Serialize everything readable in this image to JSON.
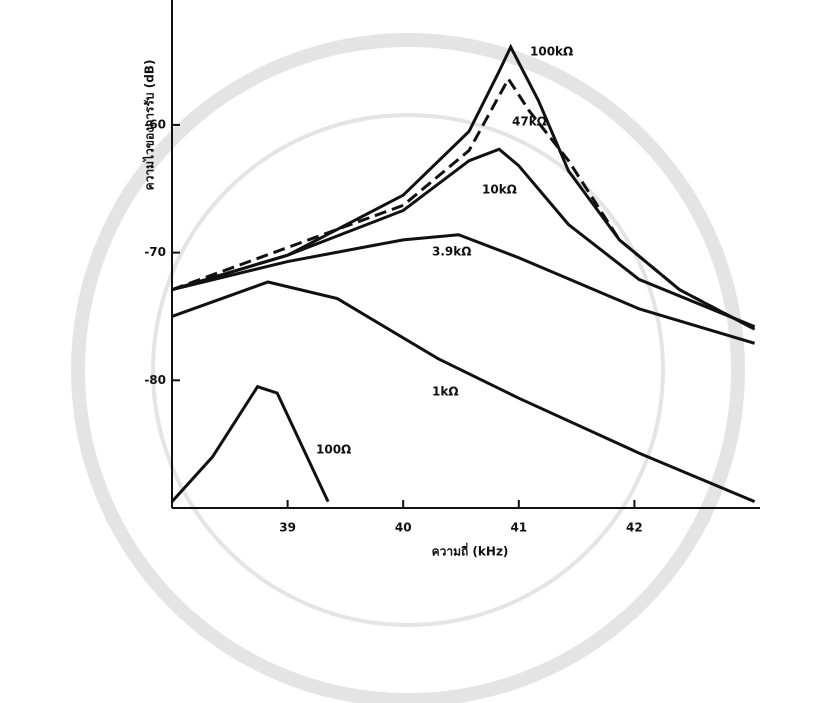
{
  "chart_data": {
    "type": "line",
    "x_label": "ความถี่ (kHz)",
    "y_label": "ความไวของการรับ (dB)",
    "xlim": [
      38,
      43
    ],
    "xticks": [
      39,
      40,
      41,
      42
    ],
    "ylim": [
      -90,
      -51
    ],
    "yticks": [
      -60,
      -70,
      -80
    ],
    "grid": false,
    "series": [
      {
        "name": "100kΩ",
        "color": "#111111",
        "dashed": false,
        "x": [
          38,
          39,
          40,
          40.57,
          40.83,
          40.93,
          41.17,
          41.43,
          41.87,
          42.39,
          43.04
        ],
        "values": [
          -72.9,
          -70.2,
          -65.5,
          -60.5,
          -55.8,
          -53.9,
          -58.1,
          -63.6,
          -69,
          -72.9,
          -76
        ]
      },
      {
        "name": "47kΩ",
        "color": "#111111",
        "dashed": true,
        "x": [
          38,
          40,
          40.57,
          40.91,
          41.09,
          41.43,
          41.87,
          42.39,
          43.04
        ],
        "values": [
          -72.9,
          -66.3,
          -62,
          -56.4,
          -58.9,
          -62.8,
          -69,
          -72.9,
          -76
        ]
      },
      {
        "name": "10kΩ",
        "color": "#111111",
        "dashed": false,
        "x": [
          38,
          39,
          40,
          40.57,
          40.83,
          41,
          41.43,
          42.04,
          43.04
        ],
        "values": [
          -72.9,
          -70.2,
          -66.7,
          -62.8,
          -61.9,
          -63.2,
          -67.8,
          -72.1,
          -75.8
        ]
      },
      {
        "name": "3.9kΩ",
        "color": "#111111",
        "dashed": false,
        "x": [
          38,
          39,
          40,
          40.48,
          41,
          42.04,
          43.04
        ],
        "values": [
          -72.9,
          -70.7,
          -69,
          -68.6,
          -70.4,
          -74.4,
          -77.1
        ]
      },
      {
        "name": "1kΩ",
        "color": "#111111",
        "dashed": false,
        "x": [
          38,
          38.83,
          39.43,
          40.3,
          41,
          42.04,
          43.04
        ],
        "values": [
          -75,
          -72.3,
          -73.6,
          -78.3,
          -81.4,
          -85.7,
          -89.5
        ]
      },
      {
        "name": "100Ω",
        "color": "#111111",
        "dashed": false,
        "x": [
          38,
          38.35,
          38.74,
          38.91,
          39.35
        ],
        "values": [
          -89.5,
          -86,
          -80.5,
          -81,
          -89.5
        ]
      }
    ]
  }
}
